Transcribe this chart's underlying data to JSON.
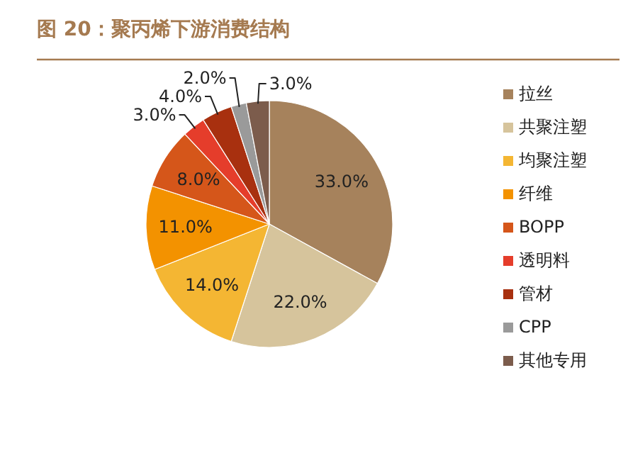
{
  "chart_data": {
    "type": "pie",
    "title": "图 20：聚丙烯下游消费结构",
    "categories": [
      "拉丝",
      "共聚注塑",
      "均聚注塑",
      "纤维",
      "BOPP",
      "透明料",
      "管材",
      "CPP",
      "其他专用"
    ],
    "values": [
      33,
      22,
      14,
      11,
      8,
      3,
      4,
      2,
      3
    ],
    "colors": [
      "#a6825c",
      "#d6c49c",
      "#f4b633",
      "#f39200",
      "#d5561a",
      "#e53d2b",
      "#a8300f",
      "#9a9a9a",
      "#7c5c4c"
    ],
    "value_labels": [
      "33.0%",
      "22.0%",
      "14.0%",
      "11.0%",
      "8.0%",
      "3.0%",
      "4.0%",
      "2.0%",
      "3.0%"
    ],
    "legend": "right"
  }
}
